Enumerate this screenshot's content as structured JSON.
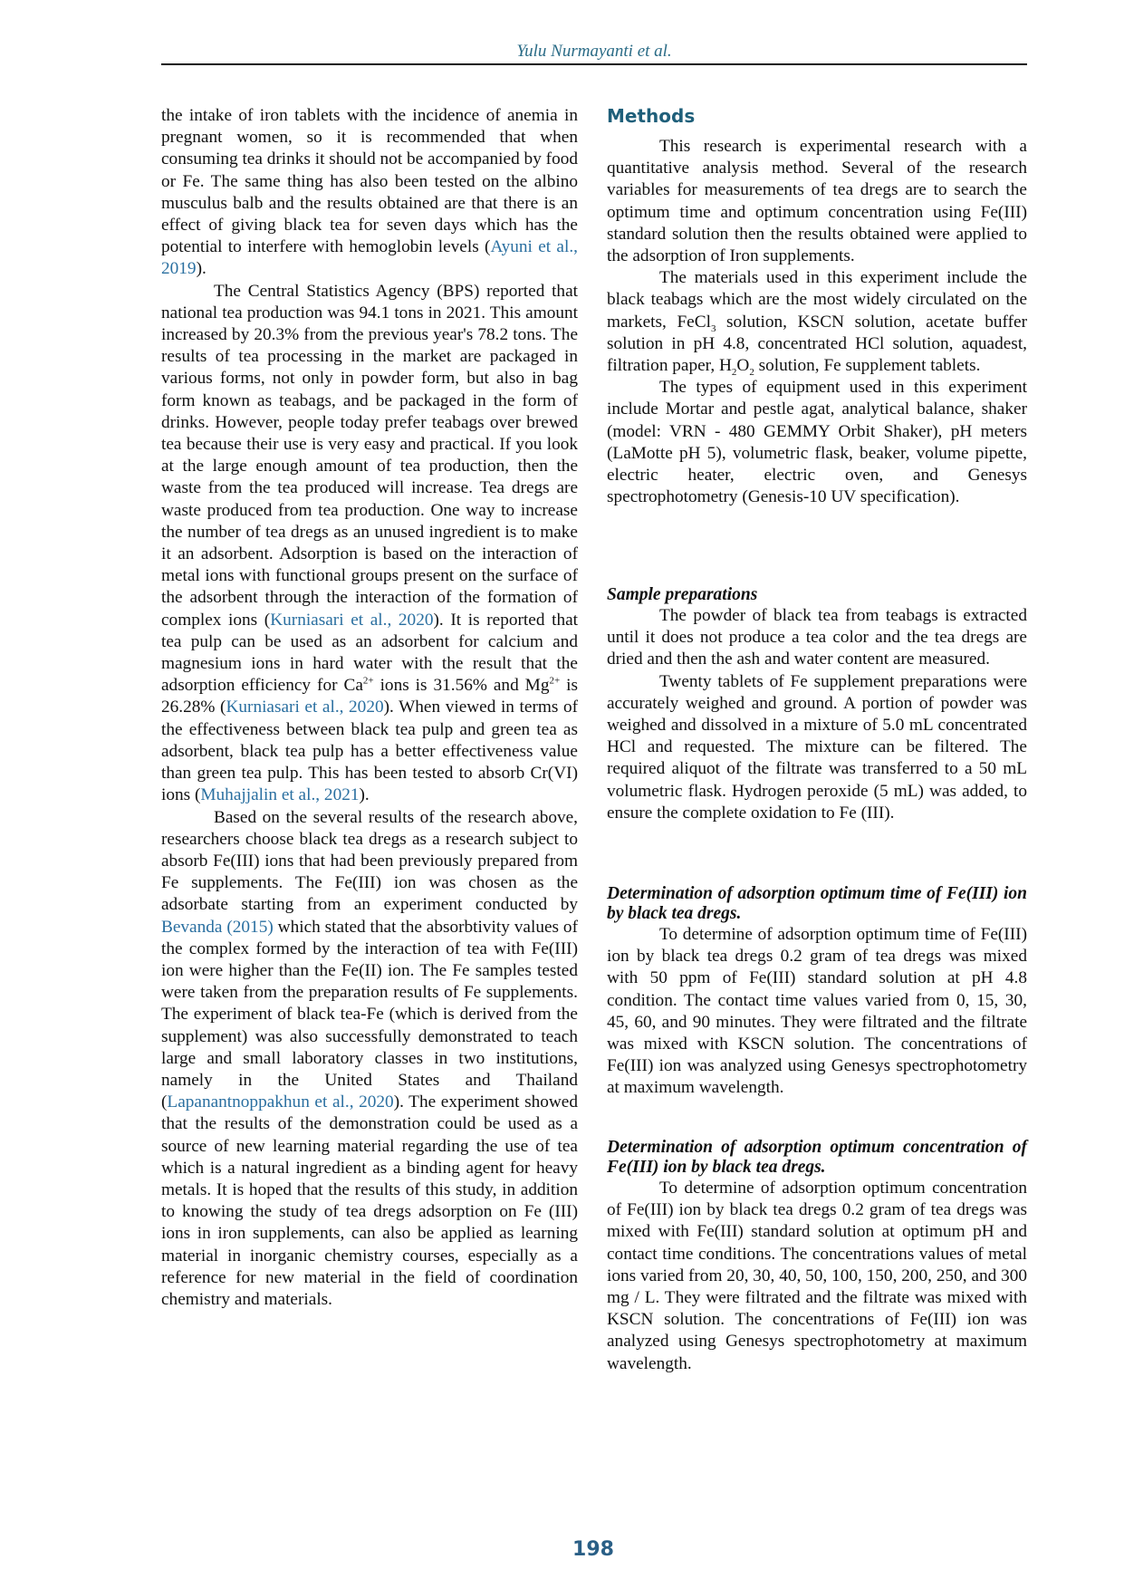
{
  "header": {
    "running_title": "Yulu Nurmayanti et al."
  },
  "left_column": {
    "paragraphs": [
      {
        "indent": false,
        "segments": [
          {
            "t": "the intake of iron tablets with the incidence of anemia in pregnant women, so it is recommended that when consuming tea drinks it should not be accompanied by food or Fe. The same thing has also been tested on the albino musculus balb and the results obtained are that there is an effect of giving black tea for seven days which has the potential to interfere with hemoglobin levels ("
          },
          {
            "t": "Ayuni et al., 2019",
            "link": true
          },
          {
            "t": ")."
          }
        ]
      },
      {
        "indent": true,
        "segments": [
          {
            "t": "The Central Statistics Agency (BPS) reported that national tea production was 94.1 tons in 2021. This amount increased by 20.3% from the previous year's 78.2 tons. The results of tea processing in the market are packaged in various forms, not only in powder form, but also in bag form known as teabags, and be packaged in the form of drinks. However, people today prefer teabags over brewed tea because their use is very easy and practical. If you look at the large enough amount of tea production, then the waste from the tea produced will increase. Tea dregs are waste produced from tea production. One way to increase the number of tea dregs as an unused ingredient is to make it an adsorbent. Adsorption is based on the interaction of metal ions with functional groups present on the surface of the adsorbent through the interaction of the formation of complex ions ("
          },
          {
            "t": "Kurniasari et al., 2020",
            "link": true
          },
          {
            "t": "). It is reported that tea pulp can be used as an adsorbent for calcium and magnesium ions in hard water with the result that the adsorption efficiency for Ca"
          },
          {
            "t": "2+",
            "sup": true
          },
          {
            "t": " ions is 31.56% and Mg"
          },
          {
            "t": "2+",
            "sup": true
          },
          {
            "t": " is 26.28% ("
          },
          {
            "t": "Kurniasari et al., 2020",
            "link": true
          },
          {
            "t": "). When viewed in terms of the effectiveness between black tea pulp and green tea as adsorbent, black tea pulp has a better effectiveness value than green tea pulp. This has been tested to absorb Cr(VI) ions ("
          },
          {
            "t": "Muhajjalin et al., 2021",
            "link": true
          },
          {
            "t": ")."
          }
        ]
      },
      {
        "indent": true,
        "segments": [
          {
            "t": "Based on the several results of the research above, researchers choose black tea dregs as a research subject to absorb Fe(III) ions that had been previously prepared from Fe supplements. The Fe(III) ion was chosen as the adsorbate starting from an experiment conducted by "
          },
          {
            "t": "Bevanda (2015)",
            "link": true
          },
          {
            "t": " which stated that the absorbtivity values of the complex formed by the interaction of tea with Fe(III) ion were higher than the Fe(II) ion. The Fe samples tested were taken from the preparation results of Fe supplements. The experiment of black tea-Fe (which is derived from the supplement) was also successfully demonstrated to teach large and small laboratory classes in two institutions, namely in the United States and Thailand ("
          },
          {
            "t": "Lapanantnoppakhun et al., 2020",
            "link": true
          },
          {
            "t": "). The experiment showed that the results of the demonstration could be used as a source of new learning material regarding the use of tea which is a natural ingredient as a binding agent for heavy metals. It is hoped that the results of this study, in addition to knowing the study of tea dregs adsorption on Fe (III) ions in iron supplements, can also be applied as learning material in inorganic chemistry courses, especially as a reference for new material in the field of coordination chemistry and materials."
          }
        ]
      }
    ]
  },
  "right_column": {
    "sections": [
      {
        "heading": "Methods",
        "style": "section",
        "paragraphs": [
          {
            "indent": true,
            "segments": [
              {
                "t": "This research is experimental research with a quantitative analysis method. Several of the research variables for measurements of tea dregs are to search the optimum time and optimum concentration using Fe(III) standard solution then the results obtained were applied to the adsorption of Iron supplements."
              }
            ]
          },
          {
            "indent": true,
            "segments": [
              {
                "t": "The materials used in this experiment include the black teabags which are the most widely circulated on the markets, FeCl"
              },
              {
                "t": "3",
                "sub": true
              },
              {
                "t": " solution, KSCN solution, acetate buffer solution in pH 4.8, concentrated HCl solution, aquadest, filtration paper, H"
              },
              {
                "t": "2",
                "sub": true
              },
              {
                "t": "O"
              },
              {
                "t": "2",
                "sub": true
              },
              {
                "t": " solution, Fe supplement tablets."
              }
            ]
          },
          {
            "indent": true,
            "segments": [
              {
                "t": "The types of equipment used in this experiment include Mortar and pestle agat, analytical balance, shaker (model: VRN - 480 GEMMY Orbit Shaker), pH meters (LaMotte pH 5), volumetric flask, beaker, volume pipette, electric heater, electric oven, and Genesys spectrophotometry (Genesis-10 UV specification)."
              }
            ]
          }
        ]
      },
      {
        "heading": "Sample preparations",
        "style": "sub",
        "paragraphs": [
          {
            "indent": true,
            "segments": [
              {
                "t": "The powder of black tea from teabags is extracted until it does not produce a tea color and the tea dregs are dried and then the ash and water content are measured."
              }
            ]
          },
          {
            "indent": true,
            "segments": [
              {
                "t": "Twenty tablets of Fe supplement preparations were accurately weighed and ground. A portion of powder was weighed and dissolved in a mixture of 5.0 mL concentrated HCl and requested. The mixture can be filtered. The required aliquot of the filtrate was transferred to a 50 mL volumetric flask. Hydrogen peroxide (5 mL) was added, to ensure the complete oxidation to Fe (III)."
              }
            ]
          }
        ]
      },
      {
        "heading": "Determination of adsorption optimum time of Fe(III) ion by black tea dregs.",
        "style": "sub",
        "paragraphs": [
          {
            "indent": true,
            "segments": [
              {
                "t": "To determine of adsorption optimum time of Fe(III) ion by black tea dregs 0.2 gram of tea dregs was mixed with 50 ppm of Fe(III) standard solution at pH 4.8 condition. The contact time values varied from 0, 15, 30, 45, 60, and 90 minutes. They were filtrated and the filtrate was mixed with KSCN solution. The concentrations of Fe(III) ion was analyzed using Genesys spectrophotometry at maximum wavelength."
              }
            ]
          }
        ]
      },
      {
        "heading": "Determination of adsorption optimum concentration of Fe(III) ion by black tea dregs.",
        "style": "sub",
        "paragraphs": [
          {
            "indent": true,
            "segments": [
              {
                "t": "To determine of adsorption optimum concentration of Fe(III) ion by black tea dregs 0.2 gram of tea dregs was mixed with Fe(III) standard solution at optimum pH and contact time conditions. The concentrations values of metal ions varied from 20, 30, 40, 50, 100, 150, 200, 250, and 300 mg / L. They were filtrated and the filtrate was mixed with KSCN solution. The concentrations of Fe(III) ion was analyzed using Genesys spectrophotometry at maximum wavelength."
              }
            ]
          }
        ]
      }
    ]
  },
  "footer": {
    "page_number": "198"
  },
  "colors": {
    "accent": "#1f5f7a",
    "link": "#2a6fa0",
    "text": "#111111"
  }
}
